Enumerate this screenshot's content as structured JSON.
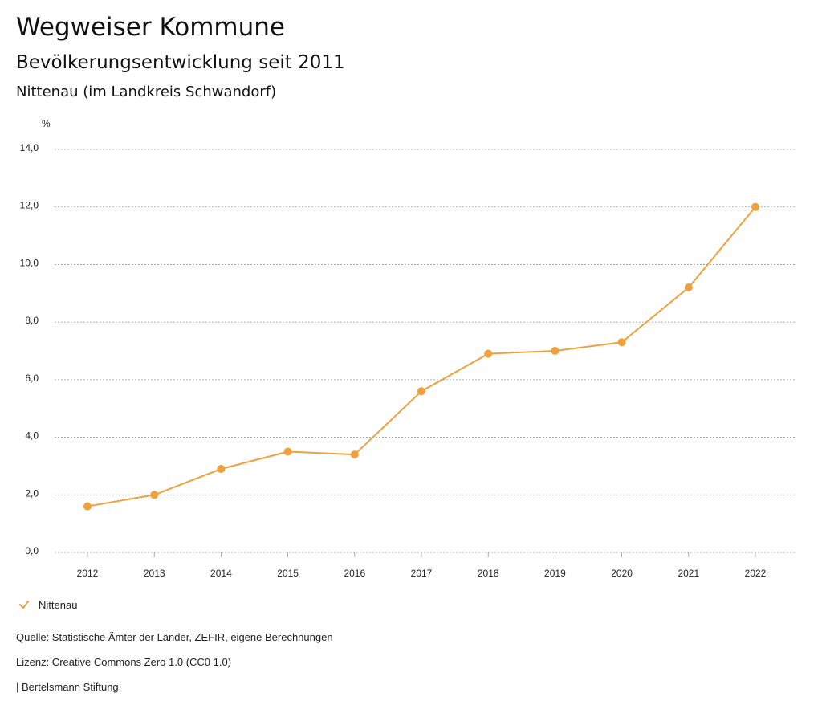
{
  "header": {
    "title": "Wegweiser Kommune",
    "subtitle": "Bevölkerungsentwicklung seit 2011",
    "region": "Nittenau (im Landkreis Schwandorf)"
  },
  "colors": {
    "series": "#F0A03C",
    "grid": "#9a9a9a"
  },
  "legend": {
    "label": "Nittenau",
    "icon": "check-icon"
  },
  "footer": {
    "source": "Quelle: Statistische Ämter der Länder, ZEFIR, eigene Berechnungen",
    "license": "Lizenz: Creative Commons Zero 1.0 (CC0 1.0)",
    "brand": "| Bertelsmann Stiftung"
  },
  "chart_data": {
    "type": "line",
    "ylabel": "%",
    "ylim": [
      0,
      14
    ],
    "yticks": [
      0,
      2,
      4,
      6,
      8,
      10,
      12,
      14
    ],
    "ytick_labels": [
      "0,0",
      "2,0",
      "4,0",
      "6,0",
      "8,0",
      "10,0",
      "12,0",
      "14,0"
    ],
    "grid": true,
    "legend_position": "bottom-left",
    "categories": [
      "2012",
      "2013",
      "2014",
      "2015",
      "2016",
      "2017",
      "2018",
      "2019",
      "2020",
      "2021",
      "2022"
    ],
    "series": [
      {
        "name": "Nittenau",
        "values": [
          1.6,
          2.0,
          2.9,
          3.5,
          3.4,
          5.6,
          6.9,
          7.0,
          7.3,
          9.2,
          12.0
        ]
      }
    ]
  }
}
